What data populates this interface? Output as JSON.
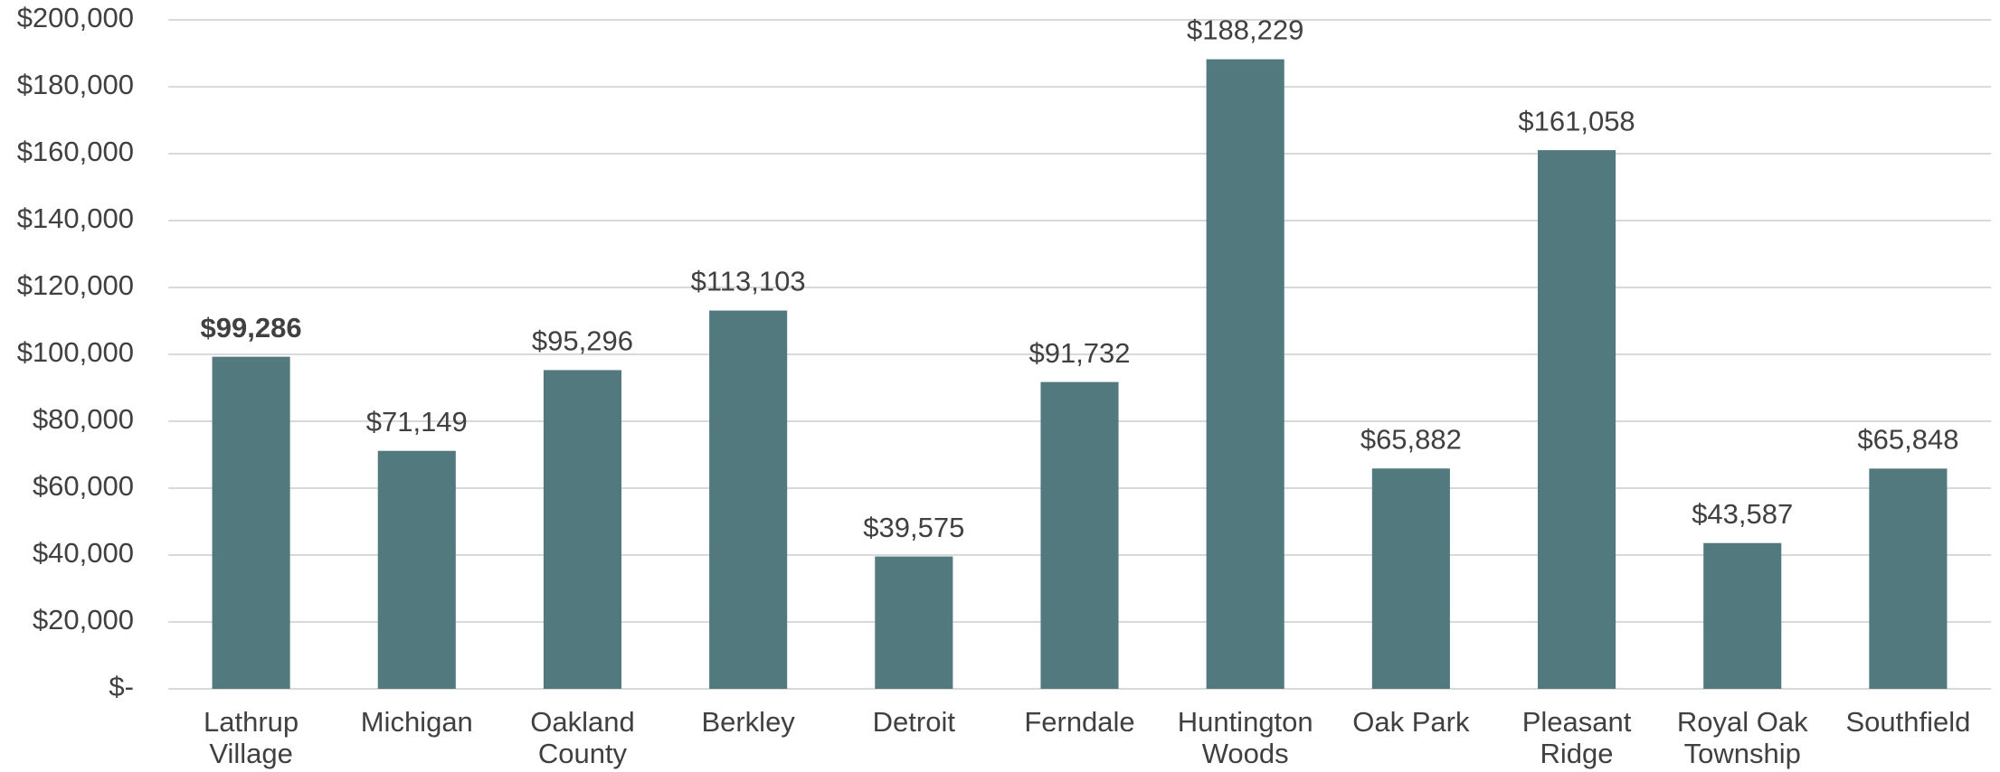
{
  "chart_data": {
    "type": "bar",
    "categories": [
      "Lathrup\nVillage",
      "Michigan",
      "Oakland\nCounty",
      "Berkley",
      "Detroit",
      "Ferndale",
      "Huntington\nWoods",
      "Oak Park",
      "Pleasant\nRidge",
      "Royal Oak\nTownship",
      "Southfield"
    ],
    "values": [
      99286,
      71149,
      95296,
      113103,
      39575,
      91732,
      188229,
      65882,
      161058,
      43587,
      65848
    ],
    "value_labels": [
      "$99,286",
      "$71,149",
      "$95,296",
      "$113,103",
      "$39,575",
      "$91,732",
      "$188,229",
      "$65,882",
      "$161,058",
      "$43,587",
      "$65,848"
    ],
    "value_label_bold": [
      true,
      false,
      false,
      false,
      false,
      false,
      false,
      false,
      false,
      false,
      false
    ],
    "color": "#527a7e",
    "ylim": [
      0,
      200000
    ],
    "yticks": [
      {
        "value": 0,
        "label": "$-"
      },
      {
        "value": 20000,
        "label": "$20,000"
      },
      {
        "value": 40000,
        "label": "$40,000"
      },
      {
        "value": 60000,
        "label": "$60,000"
      },
      {
        "value": 80000,
        "label": "$80,000"
      },
      {
        "value": 100000,
        "label": "$100,000"
      },
      {
        "value": 120000,
        "label": "$120,000"
      },
      {
        "value": 140000,
        "label": "$140,000"
      },
      {
        "value": 160000,
        "label": "$160,000"
      },
      {
        "value": 180000,
        "label": "$180,000"
      },
      {
        "value": 200000,
        "label": "$200,000"
      }
    ],
    "grid": true
  }
}
